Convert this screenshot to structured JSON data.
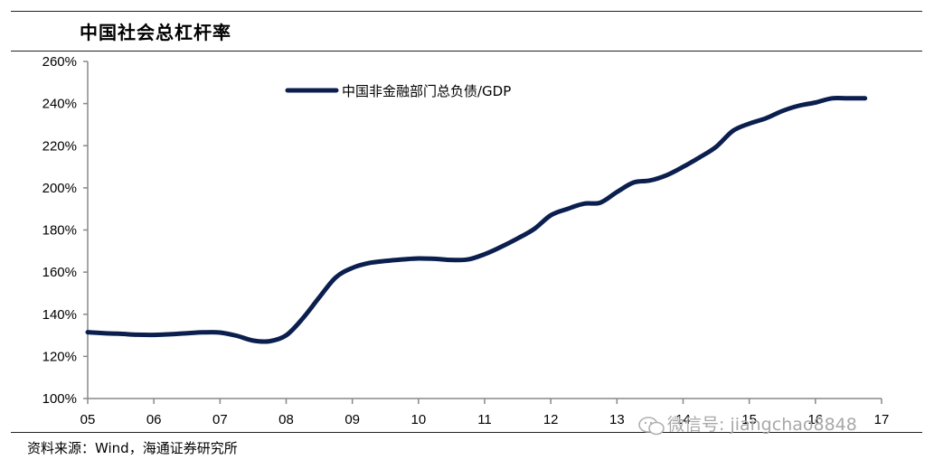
{
  "header": {
    "title": "中国社会总杠杆率"
  },
  "footer": {
    "source": "资料来源：Wind，海通证券研究所",
    "watermark": "微信号: jiangchao8848"
  },
  "chart_data": {
    "type": "line",
    "title": "中国社会总杠杆率",
    "xlabel": "",
    "ylabel": "",
    "ylim": [
      100,
      260
    ],
    "xlim": [
      2005,
      2017
    ],
    "y_ticks": [
      "100%",
      "120%",
      "140%",
      "160%",
      "180%",
      "200%",
      "220%",
      "240%",
      "260%"
    ],
    "x_ticks": [
      "05",
      "06",
      "07",
      "08",
      "09",
      "10",
      "11",
      "12",
      "13",
      "14",
      "15",
      "16",
      "17"
    ],
    "legend_position": "top-center",
    "grid": false,
    "color": "#0b1f4f",
    "series": [
      {
        "name": "中国非金融部门总负债/GDP",
        "x": [
          2005.0,
          2005.25,
          2005.5,
          2005.75,
          2006.0,
          2006.25,
          2006.5,
          2006.75,
          2007.0,
          2007.25,
          2007.5,
          2007.75,
          2008.0,
          2008.25,
          2008.5,
          2008.75,
          2009.0,
          2009.25,
          2009.5,
          2009.75,
          2010.0,
          2010.25,
          2010.5,
          2010.75,
          2011.0,
          2011.25,
          2011.5,
          2011.75,
          2012.0,
          2012.25,
          2012.5,
          2012.75,
          2013.0,
          2013.25,
          2013.5,
          2013.75,
          2014.0,
          2014.25,
          2014.5,
          2014.75,
          2015.0,
          2015.25,
          2015.5,
          2015.75,
          2016.0,
          2016.25,
          2016.5,
          2016.75
        ],
        "values": [
          131.5,
          131,
          130.7,
          130.3,
          130.2,
          130.5,
          131,
          131.4,
          131.3,
          129.8,
          127.5,
          127.2,
          130,
          138,
          148,
          157.5,
          162,
          164.3,
          165.3,
          166,
          166.5,
          166.3,
          165.8,
          166,
          168.5,
          172,
          176,
          180.5,
          187,
          190,
          192.5,
          193,
          198,
          202.5,
          203.5,
          206,
          210,
          214.5,
          219.5,
          227,
          230.5,
          233,
          236.5,
          239,
          240.5,
          242.5,
          242.5,
          242.5
        ]
      }
    ]
  }
}
